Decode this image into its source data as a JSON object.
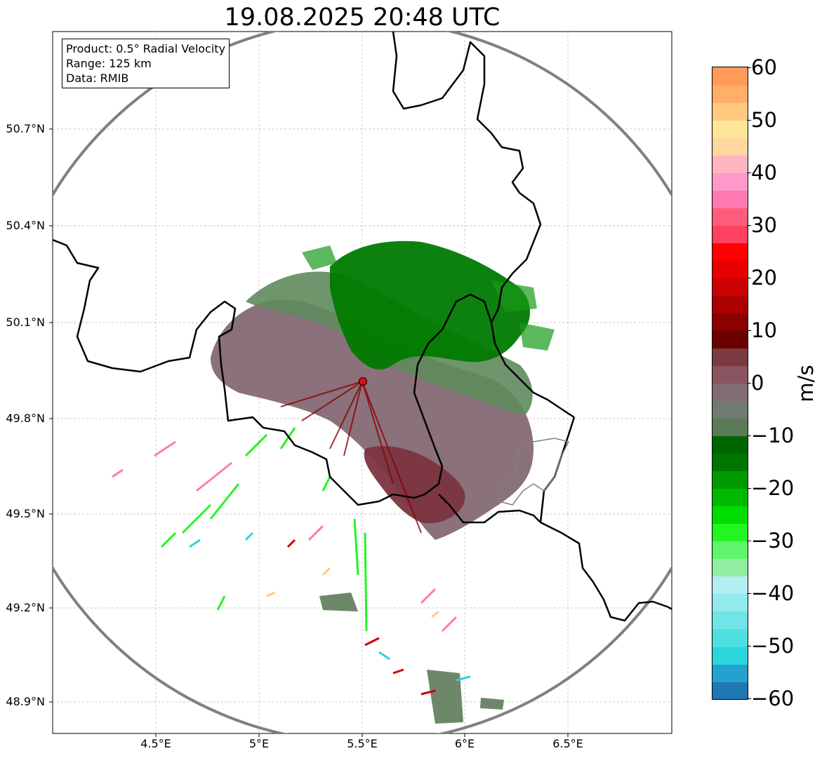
{
  "title": "19.08.2025 20:48 UTC",
  "info": {
    "product": "Product: 0.5° Radial Velocity",
    "range": "Range: 125 km",
    "data": "Data: RMIB"
  },
  "axes": {
    "lat_ticks": [
      "50.7°N",
      "50.4°N",
      "50.1°N",
      "49.8°N",
      "49.5°N",
      "49.2°N",
      "48.9°N"
    ],
    "lon_ticks": [
      "4.5°E",
      "5°E",
      "5.5°E",
      "6°E",
      "6.5°E"
    ]
  },
  "colorbar": {
    "unit": "m/s",
    "min": -60,
    "max": 60,
    "tick_labels": [
      "60",
      "50",
      "40",
      "30",
      "20",
      "10",
      "0",
      "−10",
      "−20",
      "−30",
      "−40",
      "−50",
      "−60"
    ],
    "colors": [
      "#1f77b4",
      "#24a1cf",
      "#2ad5dc",
      "#4fdfe0",
      "#70e4e6",
      "#93eaec",
      "#b5eef2",
      "#90eea0",
      "#5ef56a",
      "#22f522",
      "#00dd00",
      "#00b900",
      "#009900",
      "#007500",
      "#006400",
      "#5a7a56",
      "#6f7a70",
      "#826c72",
      "#8a5560",
      "#7a3a3e",
      "#6b0000",
      "#8b0000",
      "#aa0000",
      "#cc0000",
      "#e60000",
      "#ff0000",
      "#ff4060",
      "#ff5c7c",
      "#ff7ab0",
      "#ff99cc",
      "#ffb6c1",
      "#ffd7a0",
      "#ffe59a",
      "#ffca80",
      "#ffaf6a",
      "#ff9a58"
    ]
  },
  "radar": {
    "site_marker": "radar-site-marker",
    "colors": {
      "approaching_green": "#007a00",
      "approaching_light": "#5e8a5c",
      "neutral_mauve": "#856975",
      "receding_dark": "#7b3440",
      "range_ring": "#808080",
      "border": "#000000",
      "site": "#e01010"
    }
  }
}
